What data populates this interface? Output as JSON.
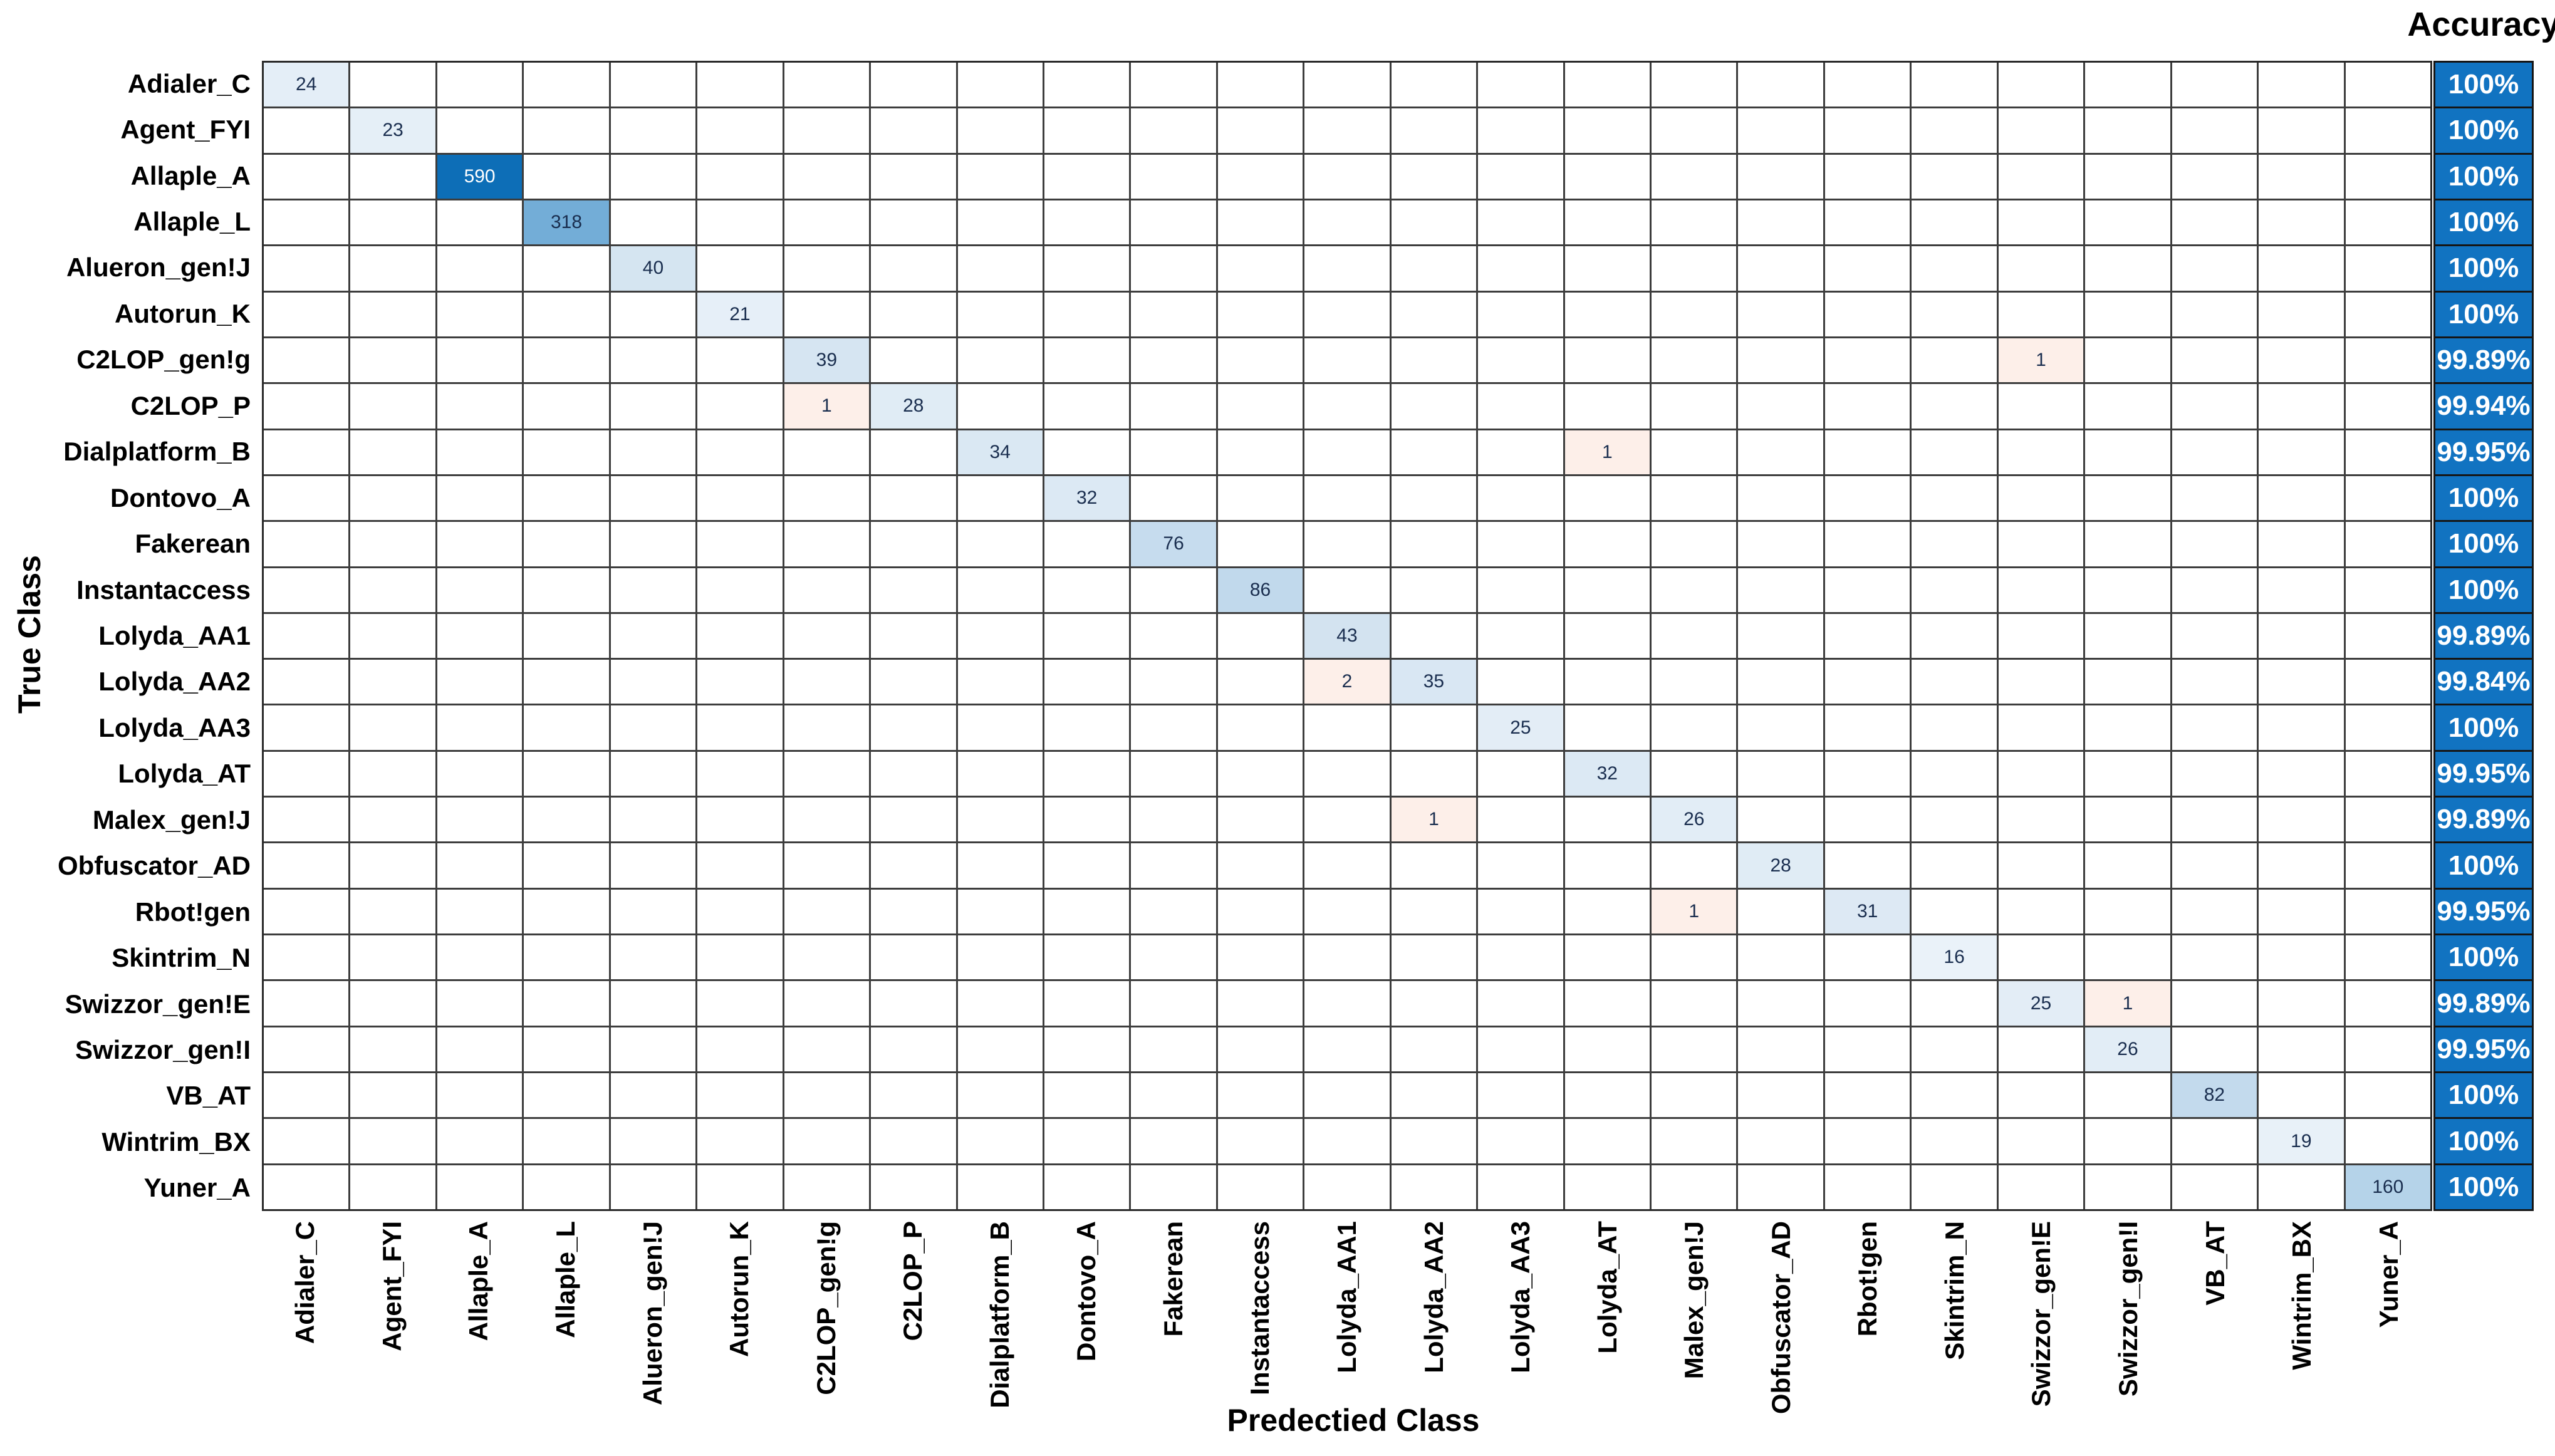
{
  "chart_data": {
    "type": "heatmap",
    "subtype": "confusion-matrix",
    "xlabel": "Predectied Class",
    "ylabel": "True Class",
    "accuracy_header": "Accuracy",
    "grid": "on",
    "classes": [
      "Adialer_C",
      "Agent_FYI",
      "Allaple_A",
      "Allaple_L",
      "Alueron_gen!J",
      "Autorun_K",
      "C2LOP_gen!g",
      "C2LOP_P",
      "Dialplatform_B",
      "Dontovo_A",
      "Fakerean",
      "Instantaccess",
      "Lolyda_AA1",
      "Lolyda_AA2",
      "Lolyda_AA3",
      "Lolyda_AT",
      "Malex_gen!J",
      "Obfuscator_AD",
      "Rbot!gen",
      "Skintrim_N",
      "Swizzor_gen!E",
      "Swizzor_gen!I",
      "VB_AT",
      "Wintrim_BX",
      "Yuner_A"
    ],
    "cells": [
      {
        "r": 1,
        "c": 1,
        "v": 24,
        "bg": "#e4eef7"
      },
      {
        "r": 2,
        "c": 2,
        "v": 23,
        "bg": "#e5eff7"
      },
      {
        "r": 3,
        "c": 3,
        "v": 590,
        "bg": "#0d6eb7",
        "fg": "#ffffff"
      },
      {
        "r": 4,
        "c": 4,
        "v": 318,
        "bg": "#73add7"
      },
      {
        "r": 5,
        "c": 5,
        "v": 40,
        "bg": "#d5e5f1"
      },
      {
        "r": 6,
        "c": 6,
        "v": 21,
        "bg": "#e6eff8"
      },
      {
        "r": 7,
        "c": 7,
        "v": 39,
        "bg": "#d6e5f2"
      },
      {
        "r": 7,
        "c": 21,
        "v": 1,
        "bg": "#fdefe9"
      },
      {
        "r": 8,
        "c": 7,
        "v": 1,
        "bg": "#fdefe9"
      },
      {
        "r": 8,
        "c": 8,
        "v": 28,
        "bg": "#e0ecf5"
      },
      {
        "r": 9,
        "c": 9,
        "v": 34,
        "bg": "#dae8f3"
      },
      {
        "r": 9,
        "c": 16,
        "v": 1,
        "bg": "#fdefe9"
      },
      {
        "r": 10,
        "c": 10,
        "v": 32,
        "bg": "#dce9f4"
      },
      {
        "r": 11,
        "c": 11,
        "v": 76,
        "bg": "#c6dcee"
      },
      {
        "r": 12,
        "c": 12,
        "v": 86,
        "bg": "#c1d9ec"
      },
      {
        "r": 13,
        "c": 13,
        "v": 43,
        "bg": "#d3e3f0"
      },
      {
        "r": 14,
        "c": 13,
        "v": 2,
        "bg": "#fdefe9"
      },
      {
        "r": 14,
        "c": 14,
        "v": 35,
        "bg": "#d9e7f3"
      },
      {
        "r": 15,
        "c": 15,
        "v": 25,
        "bg": "#e3edf6"
      },
      {
        "r": 16,
        "c": 16,
        "v": 32,
        "bg": "#dce9f4"
      },
      {
        "r": 17,
        "c": 14,
        "v": 1,
        "bg": "#fdefe9"
      },
      {
        "r": 17,
        "c": 17,
        "v": 26,
        "bg": "#e2edf6"
      },
      {
        "r": 18,
        "c": 18,
        "v": 28,
        "bg": "#e0ecf5"
      },
      {
        "r": 19,
        "c": 17,
        "v": 1,
        "bg": "#fdefe9"
      },
      {
        "r": 19,
        "c": 19,
        "v": 31,
        "bg": "#dde9f4"
      },
      {
        "r": 20,
        "c": 20,
        "v": 16,
        "bg": "#eaf2f9"
      },
      {
        "r": 21,
        "c": 21,
        "v": 25,
        "bg": "#e3edf6"
      },
      {
        "r": 21,
        "c": 22,
        "v": 1,
        "bg": "#fdefe9"
      },
      {
        "r": 22,
        "c": 22,
        "v": 26,
        "bg": "#e2edf6"
      },
      {
        "r": 23,
        "c": 23,
        "v": 82,
        "bg": "#c3daed"
      },
      {
        "r": 24,
        "c": 24,
        "v": 19,
        "bg": "#e8f1f8"
      },
      {
        "r": 25,
        "c": 25,
        "v": 160,
        "bg": "#b5d3e9"
      }
    ],
    "accuracy": [
      "100%",
      "100%",
      "100%",
      "100%",
      "100%",
      "100%",
      "99.89%",
      "99.94%",
      "99.95%",
      "100%",
      "100%",
      "100%",
      "99.89%",
      "99.84%",
      "100%",
      "99.95%",
      "99.89%",
      "100%",
      "99.95%",
      "100%",
      "99.89%",
      "99.95%",
      "100%",
      "100%",
      "100%"
    ],
    "colors": {
      "accuracy_bg": "#1173c1",
      "accuracy_text": "#ffffff",
      "grid_line": "#3d3d3d",
      "outer_border": "#2a2a2a",
      "cell_default_bg": "#ffffff",
      "cell_text": "#1a2e4f",
      "error_cell_bg": "#fdefe9",
      "max_cell_bg": "#0d6eb7"
    }
  }
}
